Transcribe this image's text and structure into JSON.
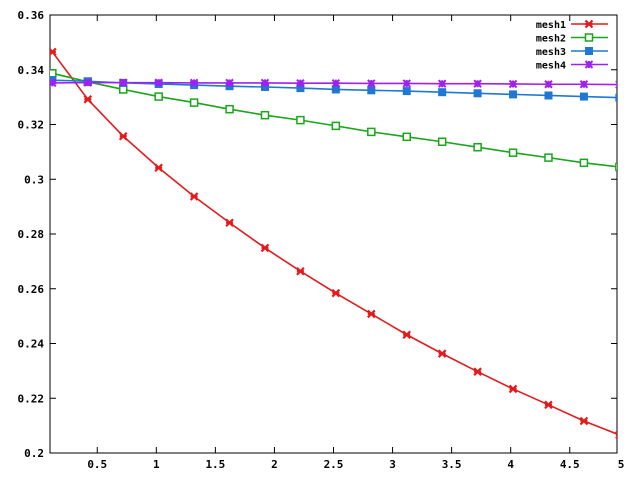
{
  "chart_data": {
    "type": "line",
    "title": "",
    "xlabel": "",
    "ylabel": "",
    "xlim": [
      0.1,
      4.9
    ],
    "ylim": [
      0.2,
      0.36
    ],
    "xticks": [
      0.5,
      1,
      1.5,
      2,
      2.5,
      3,
      3.5,
      4,
      4.5
    ],
    "xtick_labels": [
      "0.5",
      "1",
      "1.5",
      "2",
      "2.5",
      "3",
      "3.5",
      "4",
      "4.5"
    ],
    "yticks": [
      0.2,
      0.22,
      0.24,
      0.26,
      0.28,
      0.3,
      0.32,
      0.34,
      0.36
    ],
    "ytick_labels": [
      "0.2",
      "0.22",
      "0.24",
      "0.26",
      "0.28",
      "0.3",
      "0.32",
      "0.34",
      "0.36"
    ],
    "legend_position": "top-right",
    "grid": false,
    "x": [
      0.12,
      0.42,
      0.72,
      1.02,
      1.32,
      1.62,
      1.92,
      2.22,
      2.52,
      2.82,
      3.12,
      3.42,
      3.72,
      4.02,
      4.32,
      4.62,
      4.92
    ],
    "series": [
      {
        "name": "mesh1",
        "color": "#e41a1c",
        "marker": "x-star",
        "values": [
          0.3465,
          0.3292,
          0.3157,
          0.3042,
          0.2937,
          0.2841,
          0.2749,
          0.2664,
          0.2584,
          0.2508,
          0.2432,
          0.2363,
          0.2297,
          0.2234,
          0.2176,
          0.2117,
          0.2066
        ]
      },
      {
        "name": "mesh2",
        "color": "#1aa51a",
        "marker": "open-square",
        "values": [
          0.3387,
          0.3356,
          0.3328,
          0.3302,
          0.328,
          0.3256,
          0.3234,
          0.3216,
          0.3195,
          0.3173,
          0.3155,
          0.3137,
          0.3117,
          0.3097,
          0.3079,
          0.306,
          0.3045
        ]
      },
      {
        "name": "mesh3",
        "color": "#1f78d4",
        "marker": "filled-square",
        "values": [
          0.3362,
          0.3358,
          0.3352,
          0.3348,
          0.3344,
          0.334,
          0.3337,
          0.3333,
          0.3328,
          0.3325,
          0.3322,
          0.3318,
          0.3314,
          0.331,
          0.3306,
          0.3302,
          0.3298
        ]
      },
      {
        "name": "mesh4",
        "color": "#a020f0",
        "marker": "star",
        "values": [
          0.3352,
          0.3353,
          0.3353,
          0.3353,
          0.3352,
          0.3352,
          0.3352,
          0.3351,
          0.3351,
          0.335,
          0.335,
          0.3349,
          0.3349,
          0.3348,
          0.3347,
          0.3347,
          0.3346
        ]
      }
    ]
  }
}
